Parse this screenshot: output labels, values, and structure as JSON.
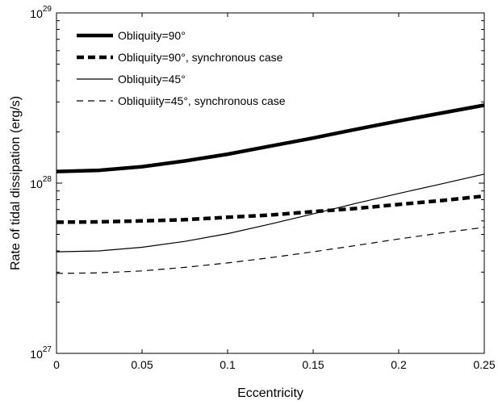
{
  "chart_data": {
    "type": "line",
    "title": "",
    "xlabel": "Eccentricity",
    "ylabel": "Rate of tidal dissipation (erg/s)",
    "xlim": [
      0,
      0.25
    ],
    "ylim": [
      1e+27,
      1e+29
    ],
    "y_scale": "log",
    "grid": false,
    "legend_position": "top-left",
    "x_ticks": [
      {
        "value": 0,
        "label": "0"
      },
      {
        "value": 0.05,
        "label": "0.05"
      },
      {
        "value": 0.1,
        "label": "0.1"
      },
      {
        "value": 0.15,
        "label": "0.15"
      },
      {
        "value": 0.2,
        "label": "0.2"
      },
      {
        "value": 0.25,
        "label": "0.25"
      }
    ],
    "y_ticks": [
      {
        "value": 1e+27,
        "base": "10",
        "exp": "27"
      },
      {
        "value": 1e+28,
        "base": "10",
        "exp": "28"
      },
      {
        "value": 1e+29,
        "base": "10",
        "exp": "29"
      }
    ],
    "x": [
      0,
      0.025,
      0.05,
      0.075,
      0.1,
      0.125,
      0.15,
      0.175,
      0.2,
      0.225,
      0.25
    ],
    "series": [
      {
        "name": "Obliquity=90°",
        "style": "solid-thick",
        "color": "#000000",
        "values": [
          1.17e+28,
          1.19e+28,
          1.25e+28,
          1.35e+28,
          1.48e+28,
          1.65e+28,
          1.84e+28,
          2.07e+28,
          2.32e+28,
          2.58e+28,
          2.87e+28
        ]
      },
      {
        "name": "Obliquity=90°, synchronous case",
        "style": "dashed-thick",
        "color": "#000000",
        "values": [
          5.9e+27,
          5.92e+27,
          6e+27,
          6.1e+27,
          6.3e+27,
          6.5e+27,
          6.8e+27,
          7.1e+27,
          7.5e+27,
          7.9e+27,
          8.4e+27
        ]
      },
      {
        "name": "Obliquity=45°",
        "style": "solid-thin",
        "color": "#000000",
        "values": [
          3.95e+27,
          4e+27,
          4.2e+27,
          4.55e+27,
          5.05e+27,
          5.75e+27,
          6.6e+27,
          7.6e+27,
          8.7e+27,
          9.9e+27,
          1.13e+28
        ]
      },
      {
        "name": "Obliquiity=45°, synchronous case",
        "style": "dashed-thin",
        "color": "#000000",
        "values": [
          2.95e+27,
          2.97e+27,
          3.05e+27,
          3.2e+27,
          3.4e+27,
          3.65e+27,
          3.95e+27,
          4.3e+27,
          4.7e+27,
          5.1e+27,
          5.5e+27
        ]
      }
    ]
  }
}
